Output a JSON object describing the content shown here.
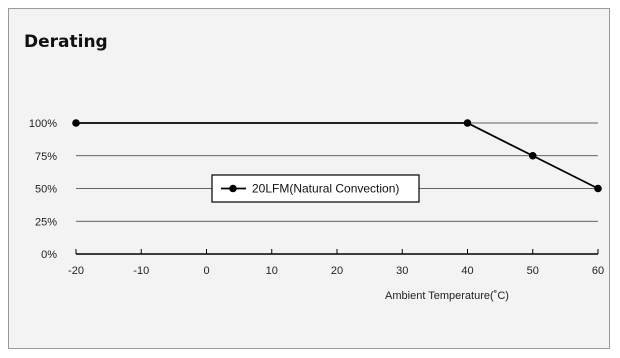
{
  "title": "Derating",
  "chart_data": {
    "type": "line",
    "xlabel": "Ambient Temperature(˚C)",
    "ylabel": "",
    "x_ticks": [
      "-20",
      "-10",
      "0",
      "10",
      "20",
      "30",
      "40",
      "50",
      "60"
    ],
    "y_ticks": [
      "0%",
      "25%",
      "50%",
      "75%",
      "100%"
    ],
    "xlim": [
      -20,
      60
    ],
    "ylim": [
      0,
      100
    ],
    "grid": "horizontal",
    "legend_position": "center",
    "series": [
      {
        "name": "20LFM(Natural Convection)",
        "x": [
          -20,
          40,
          50,
          60
        ],
        "y": [
          100,
          100,
          75,
          50
        ],
        "color": "#000000"
      }
    ]
  }
}
